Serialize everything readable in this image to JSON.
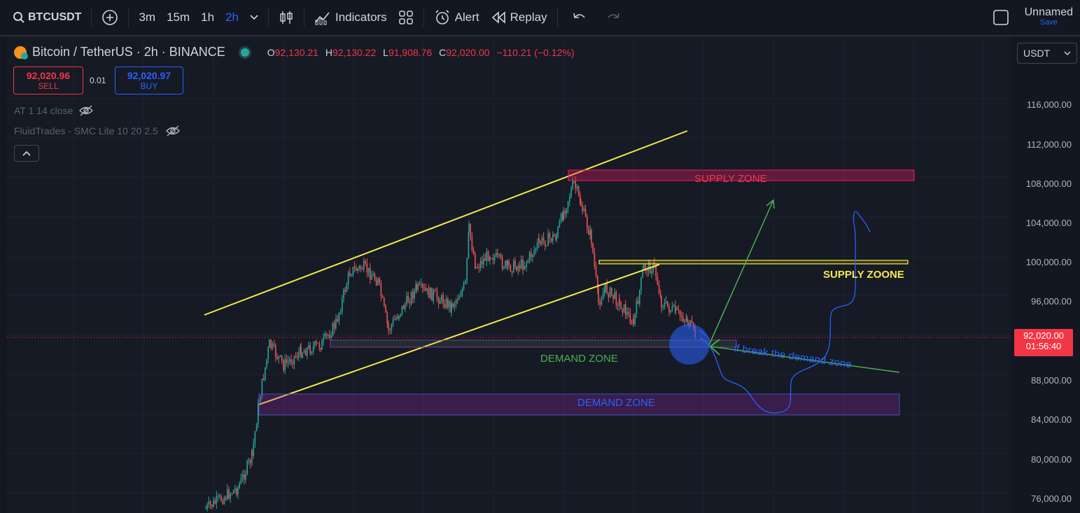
{
  "toolbar": {
    "symbol": "BTCUSDT",
    "intervals": [
      "3m",
      "15m",
      "1h",
      "2h"
    ],
    "active_interval": "2h",
    "indicators_label": "Indicators",
    "alert_label": "Alert",
    "replay_label": "Replay",
    "layout_name": "Unnamed",
    "save_label": "Save"
  },
  "legend": {
    "title": "Bitcoin / TetherUS · 2h · BINANCE",
    "open_key": "O",
    "open": "92,130.21",
    "high_key": "H",
    "high": "92,130.22",
    "low_key": "L",
    "low": "91,908.76",
    "close_key": "C",
    "close": "92,020.00",
    "change": "−110.21 (−0.12%)",
    "indicator1": "AT 1 14 close",
    "indicator2": "FluidTrades - SMC Lite 10 20 2.5"
  },
  "trade": {
    "sell_price": "92,020.96",
    "sell_label": "SELL",
    "spread": "0.01",
    "buy_price": "92,020.97",
    "buy_label": "BUY"
  },
  "currency": "USDT",
  "price_axis": [
    "116,000.00",
    "112,000.00",
    "108,000.00",
    "104,000.00",
    "100,000.00",
    "96,000.00",
    "88,000.00",
    "84,000.00",
    "80,000.00",
    "76,000.00"
  ],
  "current_price": {
    "price": "92,020.00",
    "countdown": "01:56:40"
  },
  "annotations": {
    "supply_zone": "SUPPLY ZONE",
    "supply_zoone": "SUPPLY ZOONE",
    "demand_zone_1": "DEMAND ZONE",
    "demand_zone_2": "DEMAND ZONE",
    "note": "if break the demand zone"
  },
  "colors": {
    "background": "#161a25",
    "up": "#26a69a",
    "down": "#ef5350",
    "trendline": "#f5e94a",
    "accent": "#2962ff"
  },
  "icons": [
    "search-icon",
    "plus-circle-icon",
    "chevron-down-icon",
    "candles-icon",
    "indicators-icon",
    "layout-grid-icon",
    "alert-clock-icon",
    "replay-icon",
    "undo-icon",
    "redo-icon",
    "fullscreen-icon",
    "eye-off-icon",
    "collapse-icon"
  ]
}
